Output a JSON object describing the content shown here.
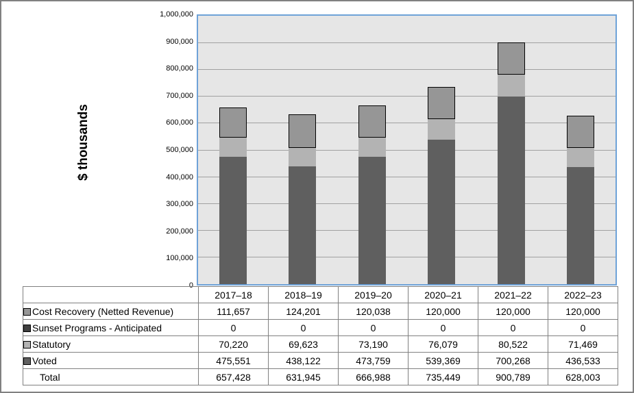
{
  "chart_data": {
    "type": "bar",
    "stacked": true,
    "title": "",
    "xlabel": "",
    "ylabel": "$ thousands",
    "ylim": [
      0,
      1000000
    ],
    "ytick_step": 100000,
    "grid": true,
    "legend_position": "table-rows",
    "plot_background": "#e6e6e6",
    "plot_border_color": "#6ea2d8",
    "gridline_color": "#a0a0a0",
    "categories": [
      "2017–18",
      "2018–19",
      "2019–20",
      "2020–21",
      "2021–22",
      "2022–23"
    ],
    "series": [
      {
        "name": "Voted",
        "color": "#5f5f5f",
        "border": null,
        "values": [
          475551,
          438122,
          473759,
          539369,
          700268,
          436533
        ]
      },
      {
        "name": "Statutory",
        "color": "#b3b3b3",
        "border": null,
        "values": [
          70220,
          69623,
          73190,
          76079,
          80522,
          71469
        ]
      },
      {
        "name": "Sunset Programs - Anticipated",
        "color": "#404040",
        "border": null,
        "values": [
          0,
          0,
          0,
          0,
          0,
          0
        ]
      },
      {
        "name": "Cost Recovery (Netted Revenue)",
        "color": "#969696",
        "border": "#000000",
        "values": [
          111657,
          124201,
          120038,
          120000,
          120000,
          120000
        ]
      }
    ],
    "totals": [
      657428,
      631945,
      666988,
      735449,
      900789,
      628003
    ]
  },
  "y_axis": {
    "tick_labels": [
      "1,000,000",
      "900,000",
      "800,000",
      "700,000",
      "600,000",
      "500,000",
      "400,000",
      "300,000",
      "200,000",
      "100,000",
      "0"
    ]
  },
  "table": {
    "header": {
      "categories": [
        "2017–18",
        "2018–19",
        "2019–20",
        "2020–21",
        "2021–22",
        "2022–23"
      ]
    },
    "rows": [
      {
        "label": "Cost Recovery (Netted Revenue)",
        "swatch": "#969696",
        "indent": false,
        "values": [
          "111,657",
          "124,201",
          "120,038",
          "120,000",
          "120,000",
          "120,000"
        ]
      },
      {
        "label": "Sunset Programs - Anticipated",
        "swatch": "#404040",
        "indent": false,
        "values": [
          "0",
          "0",
          "0",
          "0",
          "0",
          "0"
        ]
      },
      {
        "label": "Statutory",
        "swatch": "#b3b3b3",
        "indent": false,
        "values": [
          "70,220",
          "69,623",
          "73,190",
          "76,079",
          "80,522",
          "71,469"
        ]
      },
      {
        "label": "Voted",
        "swatch": "#5f5f5f",
        "indent": false,
        "values": [
          "475,551",
          "438,122",
          "473,759",
          "539,369",
          "700,268",
          "436,533"
        ]
      },
      {
        "label": "Total",
        "swatch": null,
        "indent": true,
        "values": [
          "657,428",
          "631,945",
          "666,988",
          "735,449",
          "900,789",
          "628,003"
        ]
      }
    ]
  }
}
